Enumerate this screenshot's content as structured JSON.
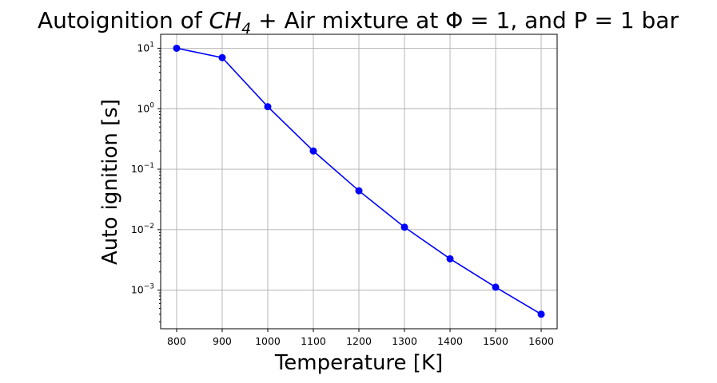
{
  "chart_data": {
    "type": "line",
    "title": {
      "prefix": "Autoignition of ",
      "species_main": "CH",
      "species_sub": "4",
      "suffix": " + Air mixture at Φ = 1, and P = 1 bar"
    },
    "xlabel": "Temperature [K]",
    "ylabel": "Auto ignition [s]",
    "y_scale": "log",
    "grid": true,
    "legend": "none",
    "xlim": [
      765,
      1635
    ],
    "ylim": [
      0.00023,
      17
    ],
    "x_ticks": [
      800,
      900,
      1000,
      1100,
      1200,
      1300,
      1400,
      1500,
      1600
    ],
    "y_ticks": [
      {
        "base": "10",
        "exp": "1",
        "value": 10
      },
      {
        "base": "10",
        "exp": "0",
        "value": 1
      },
      {
        "base": "10",
        "exp": "−1",
        "value": 0.1
      },
      {
        "base": "10",
        "exp": "−2",
        "value": 0.01
      },
      {
        "base": "10",
        "exp": "−3",
        "value": 0.001
      }
    ],
    "series": [
      {
        "color": "#0000ff",
        "marker": "circle",
        "x": [
          800,
          900,
          1000,
          1100,
          1200,
          1300,
          1400,
          1500,
          1600
        ],
        "y": [
          10.0,
          7.0,
          1.08,
          0.2,
          0.044,
          0.011,
          0.0033,
          0.00112,
          0.0004
        ]
      }
    ]
  }
}
